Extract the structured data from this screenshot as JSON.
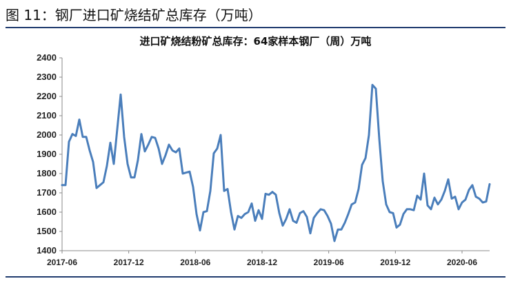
{
  "figure_title": "图 11：钢厂进口矿烧结矿总库存（万吨）",
  "colors": {
    "line": "#4a7ebb",
    "rule": "#1f3b6e",
    "axis": "#888888"
  },
  "chart_data": {
    "type": "line",
    "title": "进口矿烧结粉矿总库存：64家样本钢厂（周）万吨",
    "xlabel": "",
    "ylabel": "",
    "ylim": [
      1400,
      2400
    ],
    "yticks": [
      1400,
      1500,
      1600,
      1700,
      1800,
      1900,
      2000,
      2100,
      2200,
      2300,
      2400
    ],
    "xticks": [
      "2017-06",
      "2017-12",
      "2018-06",
      "2018-12",
      "2019-06",
      "2019-12",
      "2020-06"
    ],
    "grid": false,
    "series": [
      {
        "values": [
          1740,
          1740,
          1965,
          2005,
          1995,
          2080,
          1990,
          1990,
          1920,
          1860,
          1725,
          1740,
          1755,
          1840,
          1960,
          1850,
          2030,
          2210,
          1990,
          1850,
          1780,
          1780,
          1870,
          2005,
          1915,
          1950,
          1990,
          1985,
          1930,
          1850,
          1895,
          1950,
          1920,
          1910,
          1930,
          1800,
          1805,
          1810,
          1730,
          1590,
          1505,
          1600,
          1605,
          1710,
          1905,
          1930,
          2000,
          1710,
          1720,
          1600,
          1510,
          1580,
          1570,
          1590,
          1600,
          1645,
          1555,
          1610,
          1565,
          1695,
          1690,
          1705,
          1690,
          1595,
          1530,
          1565,
          1615,
          1555,
          1545,
          1595,
          1605,
          1575,
          1490,
          1570,
          1595,
          1615,
          1610,
          1580,
          1540,
          1450,
          1510,
          1510,
          1545,
          1590,
          1640,
          1650,
          1720,
          1845,
          1880,
          2000,
          2260,
          2240,
          1980,
          1760,
          1640,
          1600,
          1595,
          1520,
          1535,
          1590,
          1615,
          1615,
          1610,
          1685,
          1665,
          1800,
          1635,
          1615,
          1675,
          1640,
          1665,
          1710,
          1770,
          1670,
          1680,
          1615,
          1650,
          1665,
          1715,
          1740,
          1680,
          1670,
          1650,
          1655,
          1745
        ]
      }
    ]
  }
}
